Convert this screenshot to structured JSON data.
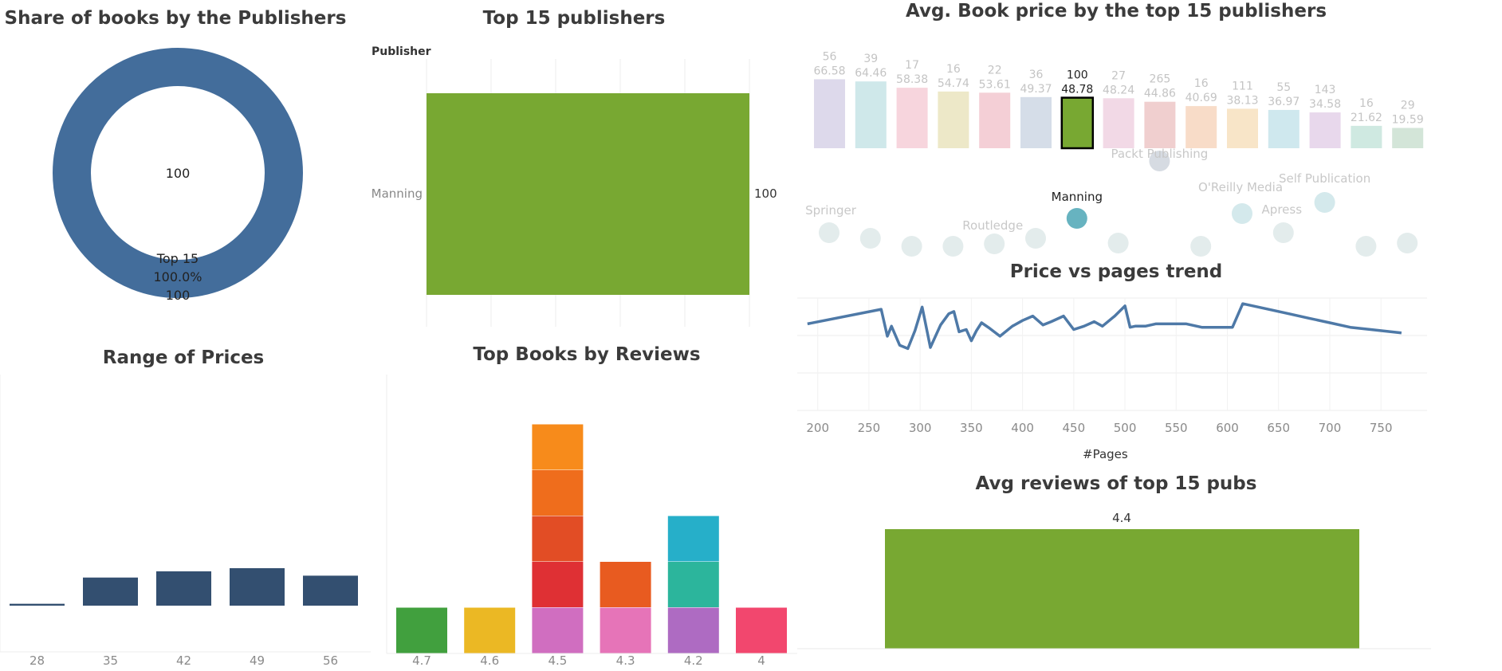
{
  "colors": {
    "blue": "#436d9b",
    "green": "#78a832",
    "navy": "#334f70",
    "line": "#4e79a7"
  },
  "chart_data": [
    {
      "id": "share",
      "type": "pie",
      "title": "Share of books by the Publishers",
      "center_label": "100",
      "slices": [
        {
          "label": "Top 15",
          "value": 100,
          "percent": "100.0%",
          "value_label": "100"
        }
      ]
    },
    {
      "id": "top15",
      "type": "bar",
      "title": "Top 15 publishers",
      "axis_header": "Publisher",
      "categories": [
        "Manning"
      ],
      "values": [
        100
      ],
      "value_labels": [
        "100"
      ],
      "xlim": [
        0,
        100
      ]
    },
    {
      "id": "avgprice",
      "type": "bar",
      "title": "Avg. Book price by the top 15 publishers",
      "values": [
        66.58,
        64.46,
        58.38,
        54.74,
        53.61,
        49.37,
        48.78,
        48.24,
        44.86,
        40.69,
        38.13,
        36.97,
        34.58,
        21.62,
        19.59
      ],
      "value_labels": [
        "66.58",
        "64.46",
        "58.38",
        "54.74",
        "53.61",
        "49.37",
        "48.78",
        "48.24",
        "44.86",
        "40.69",
        "38.13",
        "36.97",
        "34.58",
        "21.62",
        "19.59"
      ],
      "counts": [
        "56",
        "39",
        "17",
        "16",
        "22",
        "36",
        "100",
        "27",
        "265",
        "16",
        "111",
        "55",
        "143",
        "16",
        "29"
      ],
      "highlight_index": 6,
      "bar_colors": [
        "#ddd9eb",
        "#cfe8ea",
        "#f7d5dd",
        "#ede8c8",
        "#f4cfd6",
        "#d5dde8",
        "#78a832",
        "#f2d9e6",
        "#f0cfcf",
        "#f8dcc8",
        "#f8e5c8",
        "#cfe8ee",
        "#e8d8ec",
        "#cfe9e1",
        "#d3e5d8"
      ]
    },
    {
      "id": "bubbles",
      "type": "scatter",
      "labels": [
        {
          "text": "Packt Publishing",
          "for": 8
        },
        {
          "text": "Manning",
          "for": 6
        },
        {
          "text": "Springer",
          "for": 0
        },
        {
          "text": "Routledge",
          "for": 4
        },
        {
          "text": "O'Reilly Media",
          "for": 10
        },
        {
          "text": "Apress",
          "for": 11
        },
        {
          "text": "Self Publication",
          "for": 12
        }
      ],
      "highlight_index": 6
    },
    {
      "id": "pricepages",
      "type": "line",
      "title": "Price vs pages trend",
      "xlabel": "#Pages",
      "xticks": [
        "200",
        "250",
        "300",
        "350",
        "400",
        "450",
        "500",
        "550",
        "600",
        "650",
        "700",
        "750"
      ],
      "xlim": [
        180,
        795
      ],
      "ylim": [
        0,
        100
      ],
      "x": [
        190,
        262,
        268,
        272,
        280,
        288,
        295,
        302,
        310,
        320,
        328,
        333,
        338,
        345,
        350,
        355,
        360,
        368,
        378,
        390,
        400,
        410,
        420,
        428,
        440,
        450,
        460,
        470,
        478,
        490,
        500,
        505,
        510,
        520,
        530,
        545,
        560,
        575,
        590,
        605,
        615,
        640,
        660,
        680,
        700,
        720,
        740,
        770
      ],
      "y": [
        77,
        90,
        66,
        75,
        58,
        55,
        71,
        92,
        56,
        76,
        86,
        88,
        70,
        72,
        62,
        71,
        78,
        73,
        66,
        75,
        80,
        84,
        76,
        79,
        84,
        72,
        75,
        79,
        75,
        84,
        93,
        74,
        75,
        75,
        77,
        77,
        77,
        74,
        74,
        74,
        95,
        90,
        86,
        82,
        78,
        74,
        72,
        69
      ]
    },
    {
      "id": "range",
      "type": "bar",
      "title": "Range of Prices",
      "categories": [
        "28",
        "35",
        "42",
        "49",
        "56"
      ],
      "values": [
        0.3,
        4.5,
        5.5,
        6,
        4.8
      ],
      "ylim": [
        0,
        37
      ]
    },
    {
      "id": "reviews",
      "type": "bar",
      "title": "Top Books by Reviews",
      "categories": [
        "4.7",
        "4.6",
        "4.5",
        "4.3",
        "4.2",
        "4"
      ],
      "stacks": [
        [
          "#41a03e"
        ],
        [
          "#ebb824"
        ],
        [
          "#d06ec0",
          "#df3034",
          "#e24d25",
          "#ef6d1c",
          "#f78b1b"
        ],
        [
          "#e674b8",
          "#e85b20"
        ],
        [
          "#ae6bc2",
          "#2cb59c",
          "#26afc9"
        ],
        [
          "#f2476e"
        ]
      ]
    },
    {
      "id": "avgreviews",
      "type": "bar",
      "title": "Avg reviews of top 15 pubs",
      "values": [
        4.4
      ],
      "value_labels": [
        "4.4"
      ]
    }
  ]
}
